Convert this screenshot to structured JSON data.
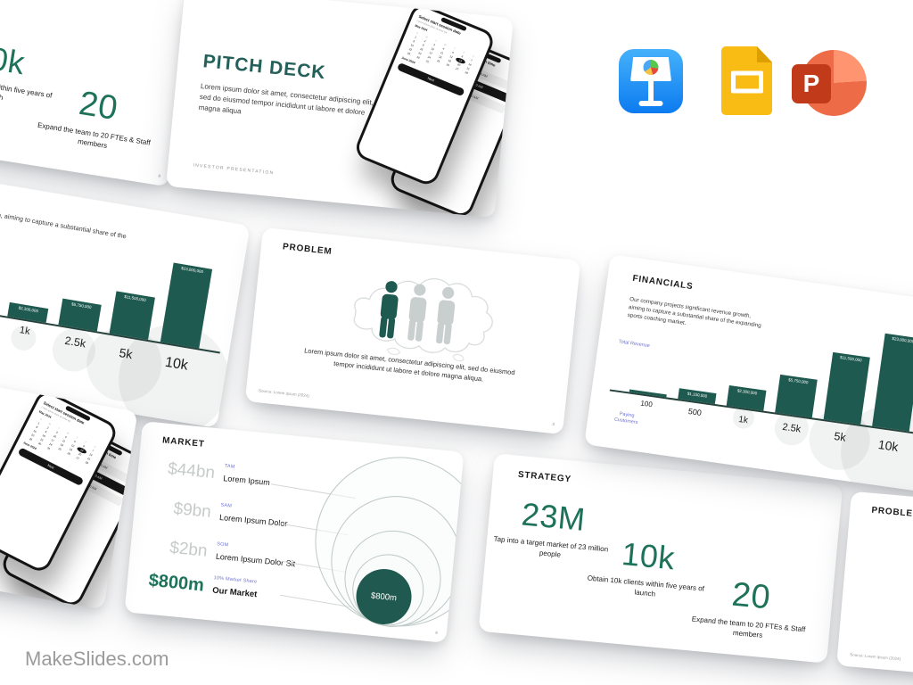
{
  "brand": {
    "name": "MakeSlides.com"
  },
  "apps": [
    {
      "name": "Apple Keynote"
    },
    {
      "name": "Google Slides"
    },
    {
      "name": "Microsoft PowerPoint",
      "letter": "P"
    }
  ],
  "title_slide": {
    "title": "PITCH DECK",
    "body": "Lorem ipsum dolor sit amet, consectetur adipiscing elit, sed do eiusmod tempor incididunt ut labore et dolore magna aliqua",
    "footer": "INVESTOR PRESENTATION",
    "phone_date": {
      "title": "Select start session date",
      "subtitle": "Lorem ipsum dolor sit amet elit",
      "month_current": "May 2024",
      "month_next": "June 2024",
      "weekdays": [
        "S",
        "M",
        "T",
        "W",
        "T",
        "F",
        "S"
      ],
      "days_in_month": 31,
      "selected_day": 13,
      "next_label": "Next"
    },
    "phone_time": {
      "title": "Select start session time",
      "subtitle": "Lorem ipsum dolor sit",
      "times": [
        "10:00 AM",
        "10:30 AM",
        "11:00 AM"
      ]
    }
  },
  "problem_slide": {
    "heading": "PROBLEM",
    "body": "Lorem ipsum dolor sit amet, consectetur adipiscing elit, sed do eiusmod tempor incididunt ut labore et dolore magna aliqua.",
    "source": "Source: Lorem ipsum (2024)",
    "page_number": "3"
  },
  "financials_slide": {
    "heading": "FINANCIALS",
    "body": "Our company projects significant revenue growth, aiming to capture a substantial share of the expanding sports coaching market.",
    "y_axis_label": "Total Revenue",
    "x_axis_label": "Paying Customers",
    "chart_data": {
      "type": "bar",
      "categories": [
        "100",
        "500",
        "1k",
        "2.5k",
        "5k",
        "10k"
      ],
      "values": [
        230000,
        1150000,
        2300000,
        5750000,
        11500000,
        23000000
      ],
      "value_labels": [
        "",
        "$1,150,000",
        "$2,300,000",
        "$5,750,000",
        "$11,500,000",
        "$23,000,000"
      ],
      "bar_color": "#1E5A4F"
    }
  },
  "market_slide": {
    "heading": "MARKET",
    "rows": [
      {
        "value": "$44bn",
        "tag": "TAM",
        "label": "Lorem Ipsum"
      },
      {
        "value": "$9bn",
        "tag": "SAM",
        "label": "Lorem Ipsum Dolor"
      },
      {
        "value": "$2bn",
        "tag": "SOM",
        "label": "Lorem Ipsum Dolor Sit"
      },
      {
        "value": "$800m",
        "tag": "10% Market Share",
        "label": "Our Market"
      }
    ],
    "bubble_value": "$800m",
    "page_number": "6"
  },
  "strategy_slide": {
    "heading": "STRATEGY",
    "stats": [
      {
        "value": "23M",
        "caption": "Tap into a target market of 23 million people"
      },
      {
        "value": "10k",
        "caption": "Obtain 10k clients within five years of launch"
      },
      {
        "value": "20",
        "caption": "Expand the team to 20 FTEs & Staff members"
      }
    ],
    "page_number": "8"
  },
  "colors": {
    "teal": "#1E5A4F",
    "green": "#1D7259",
    "purple": "#6D72D9",
    "gray_value": "#C6CBCA"
  }
}
